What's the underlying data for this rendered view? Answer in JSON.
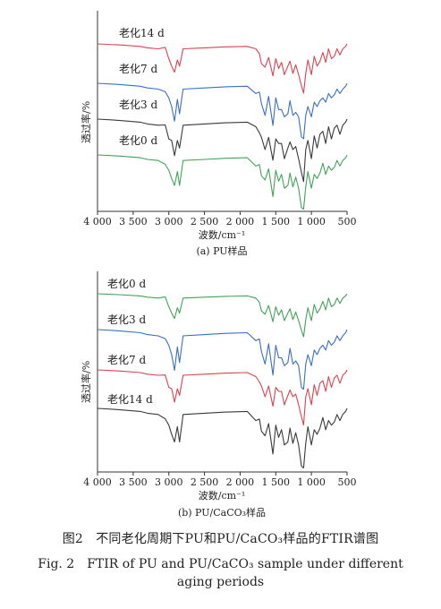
{
  "panels": [
    {
      "id": "a",
      "subcaption": "(a) PU样品",
      "xlabel": "波数/cm⁻¹",
      "ylabel": "透过率/%",
      "xticks": [
        "4 000",
        "3 500",
        "3 000",
        "2 500",
        "2 000",
        "1 500",
        "1 000",
        "500"
      ],
      "series_labels": [
        "老化14 d",
        "老化7 d",
        "老化3 d",
        "老化0 d"
      ]
    },
    {
      "id": "b",
      "subcaption": "(b) PU/CaCO₃样品",
      "xlabel": "波数/cm⁻¹",
      "ylabel": "透过率/%",
      "xticks": [
        "4 000",
        "3 500",
        "3 000",
        "2 500",
        "2 000",
        "1 500",
        "1 000",
        "500"
      ],
      "series_labels": [
        "老化0 d",
        "老化3 d",
        "老化7 d",
        "老化14 d"
      ]
    }
  ],
  "caption": {
    "cn": "图2　不同老化周期下PU和PU/CaCO₃样品的FTIR谱图",
    "en_line1": "Fig. 2　FTIR of PU and PU/CaCO₃ sample under different",
    "en_line2": "aging periods"
  },
  "colors": {
    "red": "#d9434f",
    "blue": "#3a6fc4",
    "black": "#3a3a3a",
    "green": "#43a25a"
  },
  "chart_data": [
    {
      "type": "line",
      "x_axis": {
        "label": "波数/cm⁻¹",
        "reversed": true,
        "xlim": [
          4000,
          500
        ],
        "ticks": [
          4000,
          3500,
          3000,
          2500,
          2000,
          1500,
          1000,
          500
        ]
      },
      "y_axis": {
        "label": "透过率/%",
        "ticks": false
      },
      "grid": false,
      "series": [
        {
          "name": "老化14 d",
          "color": "#d9434f"
        },
        {
          "name": "老化7 d",
          "color": "#3a6fc4"
        },
        {
          "name": "老化3 d",
          "color": "#3a3a3a"
        },
        {
          "name": "老化0 d",
          "color": "#43a25a"
        }
      ],
      "x": [
        4000,
        3700,
        3400,
        3300,
        3150,
        3050,
        3000,
        2960,
        2920,
        2880,
        2850,
        2800,
        2500,
        2200,
        1900,
        1780,
        1730,
        1700,
        1650,
        1600,
        1540,
        1500,
        1460,
        1420,
        1380,
        1330,
        1300,
        1260,
        1220,
        1180,
        1140,
        1110,
        1080,
        1050,
        1000,
        960,
        920,
        880,
        840,
        800,
        760,
        720,
        680,
        640,
        600,
        560,
        520,
        500
      ],
      "y_rel": [
        0,
        0.02,
        0.05,
        0.08,
        0.1,
        0.12,
        0.3,
        0.4,
        0.6,
        0.3,
        0.5,
        0.1,
        0.08,
        0.06,
        0.05,
        0.15,
        0.2,
        0.35,
        0.5,
        0.25,
        0.7,
        0.3,
        0.45,
        0.4,
        0.6,
        0.5,
        0.35,
        0.55,
        0.45,
        0.6,
        0.9,
        1.0,
        0.55,
        0.35,
        0.6,
        0.3,
        0.45,
        0.3,
        0.2,
        0.35,
        0.15,
        0.3,
        0.2,
        0.1,
        0.2,
        0.1,
        0.05,
        0.0
      ]
    },
    {
      "type": "line",
      "x_axis": {
        "label": "波数/cm⁻¹",
        "reversed": true,
        "xlim": [
          4000,
          500
        ],
        "ticks": [
          4000,
          3500,
          3000,
          2500,
          2000,
          1500,
          1000,
          500
        ]
      },
      "y_axis": {
        "label": "透过率/%",
        "ticks": false
      },
      "grid": false,
      "series": [
        {
          "name": "老化0 d",
          "color": "#43a25a"
        },
        {
          "name": "老化3 d",
          "color": "#3a6fc4"
        },
        {
          "name": "老化7 d",
          "color": "#d9434f"
        },
        {
          "name": "老化14 d",
          "color": "#3a3a3a"
        }
      ],
      "x": [
        4000,
        3700,
        3400,
        3300,
        3150,
        3050,
        3000,
        2960,
        2920,
        2880,
        2850,
        2800,
        2500,
        2200,
        1900,
        1780,
        1730,
        1700,
        1650,
        1600,
        1540,
        1500,
        1460,
        1420,
        1380,
        1330,
        1300,
        1260,
        1220,
        1180,
        1140,
        1110,
        1080,
        1050,
        1000,
        960,
        920,
        880,
        840,
        800,
        760,
        720,
        680,
        640,
        600,
        560,
        520,
        500
      ],
      "y_rel": [
        0,
        0.02,
        0.05,
        0.08,
        0.1,
        0.12,
        0.3,
        0.4,
        0.6,
        0.3,
        0.5,
        0.1,
        0.08,
        0.06,
        0.05,
        0.15,
        0.2,
        0.35,
        0.5,
        0.25,
        0.7,
        0.3,
        0.45,
        0.4,
        0.6,
        0.5,
        0.35,
        0.55,
        0.45,
        0.6,
        0.9,
        1.0,
        0.55,
        0.35,
        0.6,
        0.3,
        0.45,
        0.3,
        0.2,
        0.35,
        0.15,
        0.3,
        0.2,
        0.1,
        0.2,
        0.1,
        0.05,
        0.0
      ]
    }
  ]
}
